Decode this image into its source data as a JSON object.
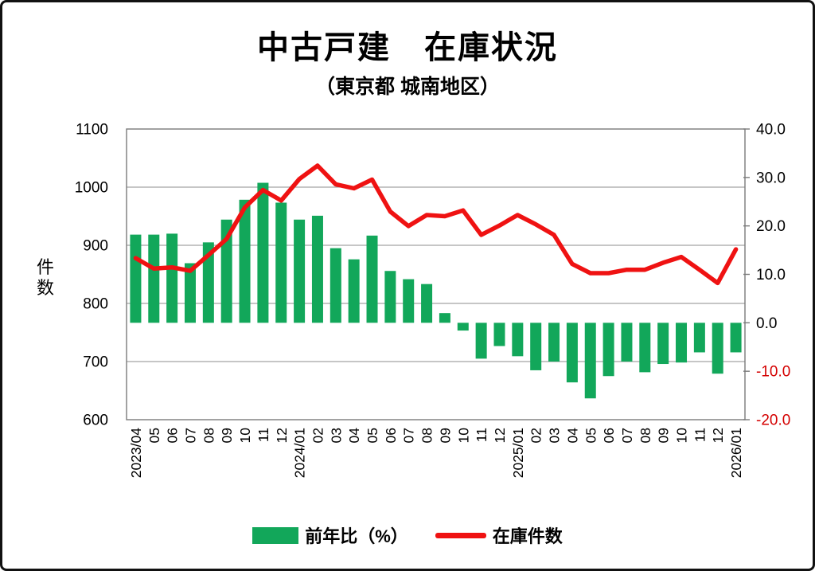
{
  "chart_data": {
    "type": "combo",
    "title": "中古戸建　在庫状況",
    "subtitle": "（東京都 城南地区）",
    "categories": [
      "2023/04",
      "05",
      "06",
      "07",
      "08",
      "09",
      "10",
      "11",
      "12",
      "2024/01",
      "02",
      "03",
      "04",
      "05",
      "06",
      "07",
      "08",
      "09",
      "10",
      "11",
      "12",
      "2025/01",
      "02",
      "03",
      "04",
      "05",
      "06",
      "07",
      "08",
      "09",
      "10",
      "11",
      "12",
      "2026/01"
    ],
    "series": [
      {
        "name": "前年比（%）",
        "type": "bar",
        "axis": "right",
        "color": "#12a75a",
        "values": [
          18.2,
          18.2,
          18.4,
          12.3,
          16.6,
          21.3,
          25.4,
          28.9,
          24.8,
          21.3,
          22.1,
          15.4,
          13.1,
          18.0,
          10.7,
          9.0,
          8.0,
          2.0,
          -1.6,
          -7.4,
          -4.8,
          -6.9,
          -9.8,
          -8.0,
          -12.3,
          -15.6,
          -11.0,
          -8.0,
          -10.2,
          -8.5,
          -8.2,
          -6.1,
          -10.5,
          -6.1
        ]
      },
      {
        "name": "在庫件数",
        "type": "line",
        "axis": "left",
        "color": "#ef1212",
        "values": [
          878,
          860,
          862,
          856,
          883,
          911,
          965,
          995,
          977,
          1014,
          1037,
          1005,
          998,
          1013,
          958,
          933,
          952,
          950,
          960,
          918,
          934,
          952,
          936,
          918,
          868,
          852,
          852,
          858,
          858,
          870,
          880,
          858,
          835,
          893
        ]
      }
    ],
    "left_axis": {
      "label": "件数",
      "min": 600,
      "max": 1100,
      "step": 100,
      "ticks": [
        "1100",
        "1000",
        "900",
        "800",
        "700",
        "600"
      ]
    },
    "right_axis": {
      "min": -20,
      "max": 40,
      "step": 10,
      "ticks": [
        "40.0",
        "30.0",
        "20.0",
        "10.0",
        "0.0",
        "-10.0",
        "-20.0"
      ],
      "negative_color": "#d40000"
    },
    "grid": "horizontal",
    "colors": {
      "grid_line": "#8c8c8c",
      "frame": "#7a7a7a",
      "text": "#000000"
    },
    "legend_position": "bottom"
  },
  "legend": {
    "bar_label": "前年比（%）",
    "line_label": "在庫件数"
  }
}
